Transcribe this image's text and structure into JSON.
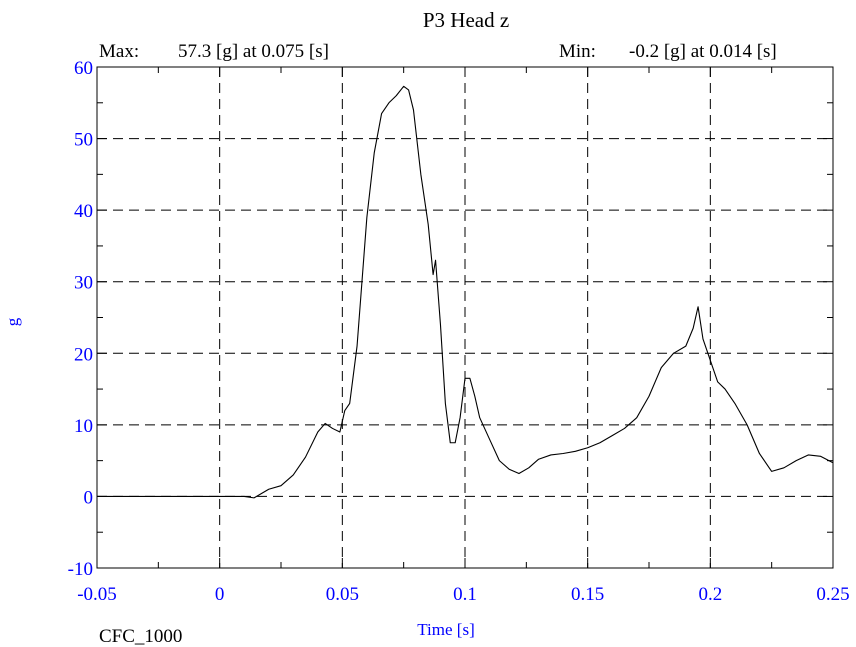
{
  "chart_data": {
    "type": "line",
    "title": "P3 Head z",
    "xlabel": "Time [s]",
    "ylabel": "g",
    "xlim": [
      -0.05,
      0.25
    ],
    "ylim": [
      -10,
      60
    ],
    "x_ticks": [
      "-0.05",
      "0",
      "0.05",
      "0.1",
      "0.15",
      "0.2",
      "0.25"
    ],
    "y_ticks": [
      "-10",
      "0",
      "10",
      "20",
      "30",
      "40",
      "50",
      "60"
    ],
    "grid": true,
    "filter_label": "CFC_1000",
    "max": {
      "label": "Max:",
      "value": "57.3 [g] at 0.075 [s]"
    },
    "min": {
      "label": "Min:",
      "value": "-0.2 [g] at 0.014 [s]"
    },
    "series": [
      {
        "x": [
          -0.05,
          0.0,
          0.01,
          0.014,
          0.02,
          0.025,
          0.03,
          0.035,
          0.04,
          0.043,
          0.046,
          0.049,
          0.051,
          0.053,
          0.056,
          0.058,
          0.06,
          0.063,
          0.066,
          0.069,
          0.072,
          0.075,
          0.077,
          0.079,
          0.082,
          0.085,
          0.087,
          0.088,
          0.09,
          0.092,
          0.094,
          0.096,
          0.098,
          0.1,
          0.102,
          0.104,
          0.106,
          0.108,
          0.11,
          0.114,
          0.118,
          0.122,
          0.126,
          0.13,
          0.135,
          0.14,
          0.145,
          0.15,
          0.155,
          0.16,
          0.165,
          0.17,
          0.175,
          0.18,
          0.185,
          0.19,
          0.193,
          0.195,
          0.197,
          0.2,
          0.203,
          0.206,
          0.21,
          0.215,
          0.22,
          0.225,
          0.23,
          0.235,
          0.24,
          0.245,
          0.25
        ],
        "y": [
          0,
          0,
          0,
          -0.2,
          1,
          1.5,
          3,
          5.5,
          9,
          10.2,
          9.5,
          9,
          12,
          13,
          21,
          30,
          39,
          48,
          53.5,
          55,
          56,
          57.3,
          56.8,
          54,
          45,
          38,
          31,
          33,
          24,
          13,
          7.5,
          7.5,
          11,
          16.5,
          16.5,
          14,
          11,
          9.5,
          8,
          5,
          3.8,
          3.2,
          4,
          5.2,
          5.8,
          6,
          6.3,
          6.8,
          7.5,
          8.5,
          9.5,
          11,
          14,
          18,
          20,
          21,
          23.5,
          26.5,
          22,
          19,
          16,
          15,
          13,
          10,
          6,
          3.5,
          4,
          5,
          5.8,
          5.6,
          4.7
        ]
      }
    ]
  }
}
